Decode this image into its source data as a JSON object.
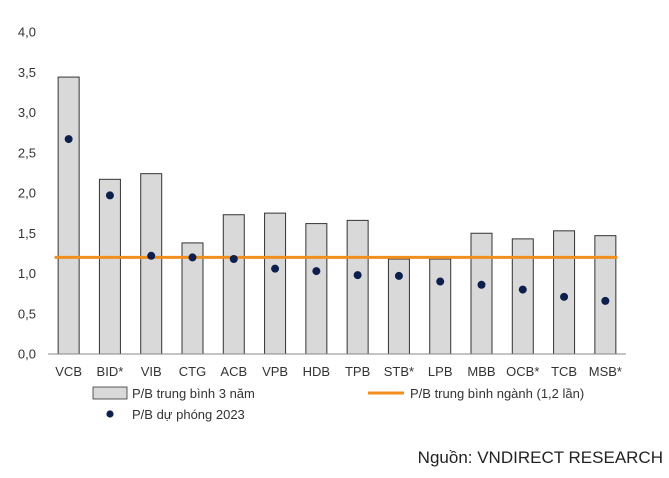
{
  "chart_data": {
    "type": "bar",
    "categories": [
      "VCB",
      "BID*",
      "VIB",
      "CTG",
      "ACB",
      "VPB",
      "HDB",
      "TPB",
      "STB*",
      "LPB",
      "MBB",
      "OCB*",
      "TCB",
      "MSB*"
    ],
    "series": [
      {
        "name": "P/B trung bình 3 năm",
        "kind": "bar",
        "color": "#d9d9d9",
        "values": [
          3.44,
          2.17,
          2.24,
          1.38,
          1.73,
          1.75,
          1.62,
          1.66,
          1.18,
          1.18,
          1.5,
          1.43,
          1.53,
          1.47
        ]
      },
      {
        "name": "P/B dự phóng 2023",
        "kind": "scatter",
        "color": "#0d1f4d",
        "values": [
          2.67,
          1.97,
          1.22,
          1.2,
          1.18,
          1.06,
          1.03,
          0.98,
          0.97,
          0.9,
          0.86,
          0.8,
          0.71,
          0.66
        ]
      },
      {
        "name": "P/B trung bình ngành (1,2 lần)",
        "kind": "hline",
        "color": "#f28e1e",
        "value": 1.2
      }
    ],
    "ylim": [
      0,
      4.0
    ],
    "yticks": [
      "0,0",
      "0,5",
      "1,0",
      "1,5",
      "2,0",
      "2,5",
      "3,0",
      "3,5",
      "4,0"
    ],
    "grid": false,
    "legend_position": "bottom"
  },
  "source": "Nguồn: VNDIRECT RESEARCH"
}
